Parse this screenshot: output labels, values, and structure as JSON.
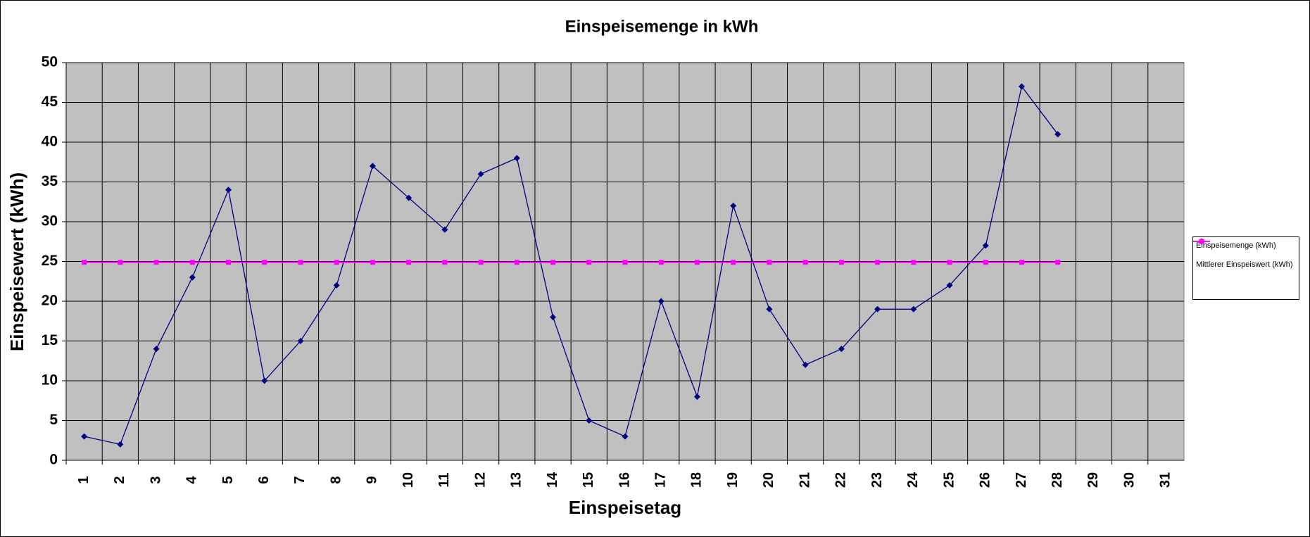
{
  "chart_data": {
    "type": "line",
    "title": "Einspeisemenge in kWh",
    "x_label": "Einspeisetag",
    "y_label": "Einspeisewert  (kWh)",
    "categories": [
      "1",
      "2",
      "3",
      "4",
      "5",
      "6",
      "7",
      "8",
      "9",
      "10",
      "11",
      "12",
      "13",
      "14",
      "15",
      "16",
      "17",
      "18",
      "19",
      "20",
      "21",
      "22",
      "23",
      "24",
      "25",
      "26",
      "27",
      "28",
      "29",
      "30",
      "31"
    ],
    "series": [
      {
        "name": "Einspeisemenge (kWh)",
        "color": "#000080",
        "marker": "diamond",
        "values": [
          3,
          2,
          14,
          23,
          34,
          10,
          15,
          22,
          37,
          33,
          29,
          36,
          38,
          18,
          5,
          3,
          20,
          8,
          32,
          19,
          12,
          14,
          19,
          19,
          22,
          27,
          47,
          41,
          null,
          null,
          null
        ]
      },
      {
        "name": "Mittlerer Einspeiswert (kWh)",
        "color": "#ff00ff",
        "marker": "square",
        "values": [
          24.9,
          24.9,
          24.9,
          24.9,
          24.9,
          24.9,
          24.9,
          24.9,
          24.9,
          24.9,
          24.9,
          24.9,
          24.9,
          24.9,
          24.9,
          24.9,
          24.9,
          24.9,
          24.9,
          24.9,
          24.9,
          24.9,
          24.9,
          24.9,
          24.9,
          24.9,
          24.9,
          24.9,
          null,
          null,
          null
        ]
      }
    ],
    "ylim": [
      0,
      50
    ],
    "yticks": [
      0,
      5,
      10,
      15,
      20,
      25,
      30,
      35,
      40,
      45,
      50
    ],
    "grid": true,
    "legend": "right"
  }
}
